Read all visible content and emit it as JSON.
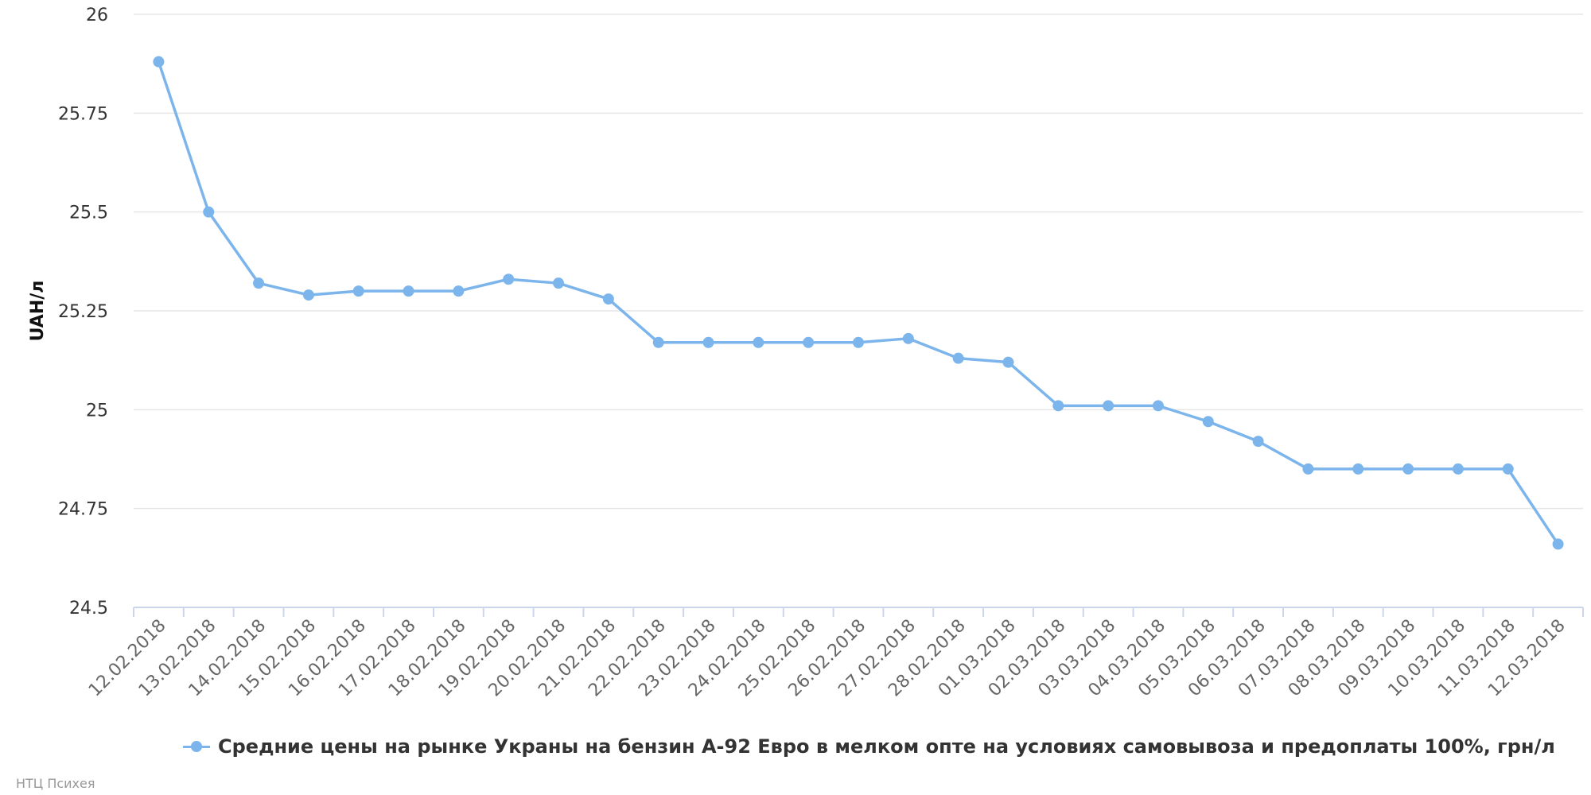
{
  "chart_data": {
    "type": "line",
    "ylabel": "UAH/л",
    "ylim": [
      24.5,
      26
    ],
    "yticks": [
      "24.5",
      "24.75",
      "25",
      "25.25",
      "25.5",
      "25.75",
      "26"
    ],
    "grid": true,
    "legend_position": "bottom",
    "x": [
      "12.02.2018",
      "13.02.2018",
      "14.02.2018",
      "15.02.2018",
      "16.02.2018",
      "17.02.2018",
      "18.02.2018",
      "19.02.2018",
      "20.02.2018",
      "21.02.2018",
      "22.02.2018",
      "23.02.2018",
      "24.02.2018",
      "25.02.2018",
      "26.02.2018",
      "27.02.2018",
      "28.02.2018",
      "01.03.2018",
      "02.03.2018",
      "03.03.2018",
      "04.03.2018",
      "05.03.2018",
      "06.03.2018",
      "07.03.2018",
      "08.03.2018",
      "09.03.2018",
      "10.03.2018",
      "11.03.2018",
      "12.03.2018"
    ],
    "series": [
      {
        "name": "Средние цены на рынке Украны на бензин А-92 Евро в мелком опте на условиях самовывоза и предоплаты 100%, грн/л",
        "color": "#7cb5ec",
        "values": [
          25.88,
          25.5,
          25.32,
          25.29,
          25.3,
          25.3,
          25.3,
          25.33,
          25.32,
          25.28,
          25.17,
          25.17,
          25.17,
          25.17,
          25.17,
          25.18,
          25.13,
          25.12,
          25.01,
          25.01,
          25.01,
          24.97,
          24.92,
          24.85,
          24.85,
          24.85,
          24.85,
          24.85,
          24.66
        ]
      }
    ]
  },
  "credit": "НТЦ Психея"
}
